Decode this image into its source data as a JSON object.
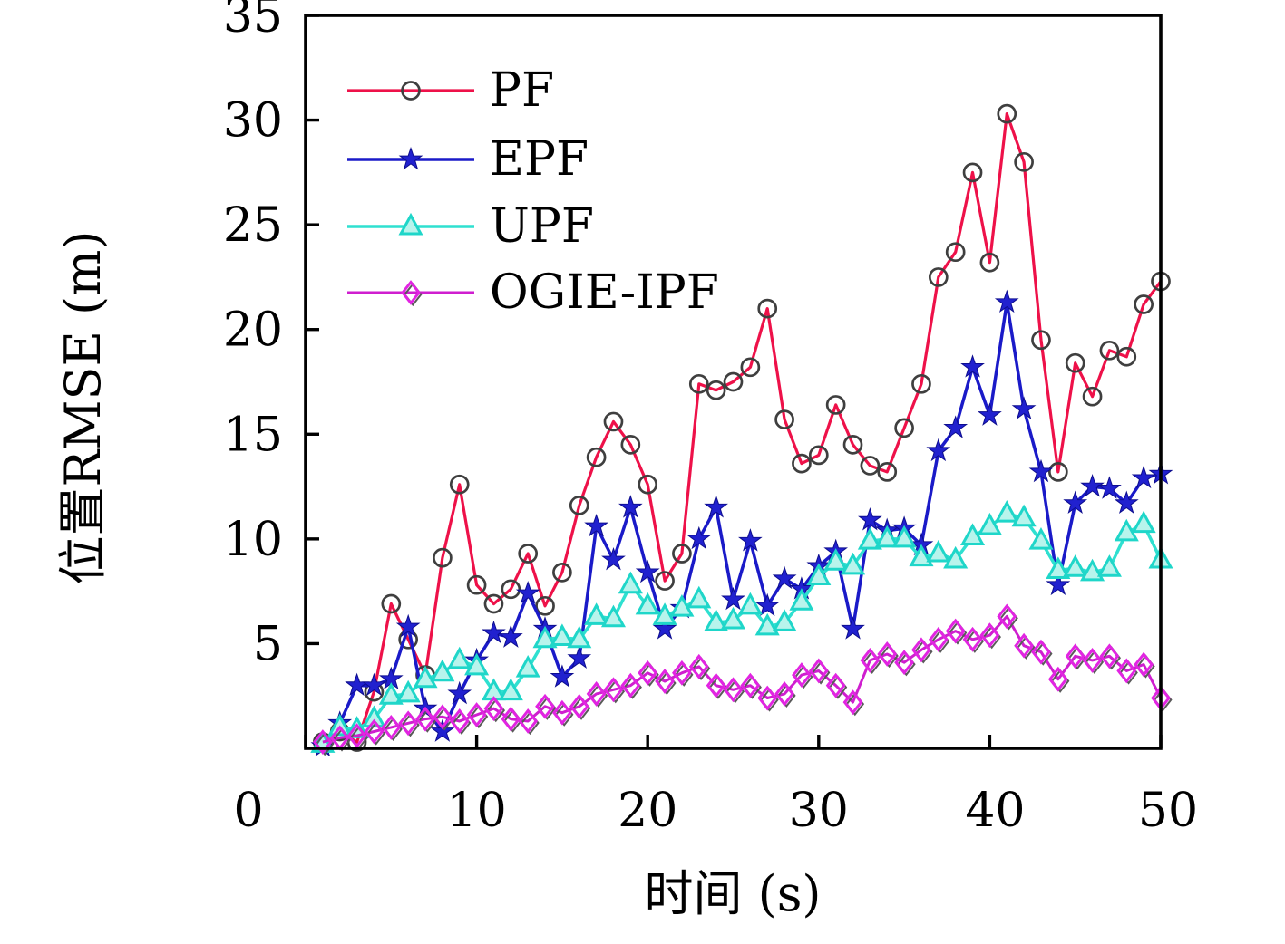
{
  "chart_data": {
    "type": "line",
    "title": "",
    "xlabel": "时间 (s)",
    "ylabel": "位置RMSE (m)",
    "xlim": [
      0,
      50
    ],
    "ylim": [
      0,
      35
    ],
    "xticks": [
      0,
      10,
      20,
      30,
      40,
      50
    ],
    "yticks": [
      5,
      10,
      15,
      20,
      25,
      30,
      35
    ],
    "grid": false,
    "legend_position": "top-left",
    "x": [
      1,
      2,
      3,
      4,
      5,
      6,
      7,
      8,
      9,
      10,
      11,
      12,
      13,
      14,
      15,
      16,
      17,
      18,
      19,
      20,
      21,
      22,
      23,
      24,
      25,
      26,
      27,
      28,
      29,
      30,
      31,
      32,
      33,
      34,
      35,
      36,
      37,
      38,
      39,
      40,
      41,
      42,
      43,
      44,
      45,
      46,
      47,
      48,
      49,
      50
    ],
    "series": [
      {
        "name": "PF",
        "marker": "circle",
        "line_color": "#ee1149",
        "marker_color": "#3f3f3f",
        "values": [
          0.3,
          0.8,
          0.3,
          2.7,
          6.9,
          5.2,
          3.5,
          9.1,
          12.6,
          7.8,
          6.9,
          7.6,
          9.3,
          6.8,
          8.4,
          11.6,
          13.9,
          15.6,
          14.5,
          12.6,
          8.0,
          9.3,
          17.4,
          17.1,
          17.5,
          18.2,
          21.0,
          15.7,
          13.6,
          14.0,
          16.4,
          14.5,
          13.5,
          13.2,
          15.3,
          17.4,
          22.5,
          23.7,
          27.5,
          23.2,
          30.3,
          28.0,
          19.5,
          13.2,
          18.4,
          16.8,
          19.0,
          18.7,
          21.2,
          22.3
        ]
      },
      {
        "name": "EPF",
        "marker": "star",
        "line_color": "#1a1ac8",
        "marker_color": "#2121cf",
        "values": [
          0.1,
          1.2,
          3.0,
          3.0,
          3.3,
          5.8,
          1.9,
          0.8,
          2.6,
          4.2,
          5.5,
          5.3,
          7.4,
          5.7,
          3.4,
          4.3,
          10.6,
          9.0,
          11.5,
          8.4,
          5.7,
          6.7,
          10.0,
          11.5,
          7.1,
          9.9,
          6.8,
          8.1,
          7.6,
          8.7,
          9.4,
          5.7,
          10.9,
          10.4,
          10.5,
          9.7,
          14.2,
          15.3,
          18.2,
          15.9,
          21.3,
          16.2,
          13.2,
          7.8,
          11.7,
          12.5,
          12.4,
          11.7,
          12.9,
          13.1
        ]
      },
      {
        "name": "UPF",
        "marker": "triangle",
        "line_color": "#2fe0d0",
        "marker_color": "#1fd6c9",
        "values": [
          0.2,
          1.0,
          0.9,
          1.4,
          2.5,
          2.6,
          3.3,
          3.6,
          4.2,
          3.9,
          2.7,
          2.7,
          3.8,
          5.2,
          5.3,
          5.2,
          6.3,
          6.2,
          7.8,
          6.8,
          6.3,
          6.7,
          7.1,
          6.0,
          6.1,
          6.8,
          5.8,
          6.0,
          7.0,
          8.2,
          8.9,
          8.7,
          9.9,
          10.0,
          10.0,
          9.1,
          9.3,
          9.0,
          10.1,
          10.6,
          11.2,
          11.0,
          9.9,
          8.5,
          8.6,
          8.4,
          8.6,
          10.3,
          10.7,
          9.0
        ]
      },
      {
        "name": "OGIE-IPF",
        "marker": "diamond",
        "line_color": "#cf1ecf",
        "marker_color": "#e224e2",
        "values": [
          0.3,
          0.5,
          0.6,
          0.8,
          1.0,
          1.2,
          1.4,
          1.5,
          1.3,
          1.6,
          1.9,
          1.4,
          1.3,
          2.0,
          1.7,
          2.0,
          2.6,
          2.8,
          3.0,
          3.6,
          3.2,
          3.6,
          3.9,
          3.0,
          2.8,
          3.0,
          2.4,
          2.6,
          3.5,
          3.7,
          3.0,
          2.2,
          4.2,
          4.5,
          4.1,
          4.7,
          5.2,
          5.6,
          5.2,
          5.4,
          6.3,
          4.9,
          4.6,
          3.3,
          4.4,
          4.2,
          4.4,
          3.7,
          4.0,
          2.4
        ]
      }
    ]
  }
}
